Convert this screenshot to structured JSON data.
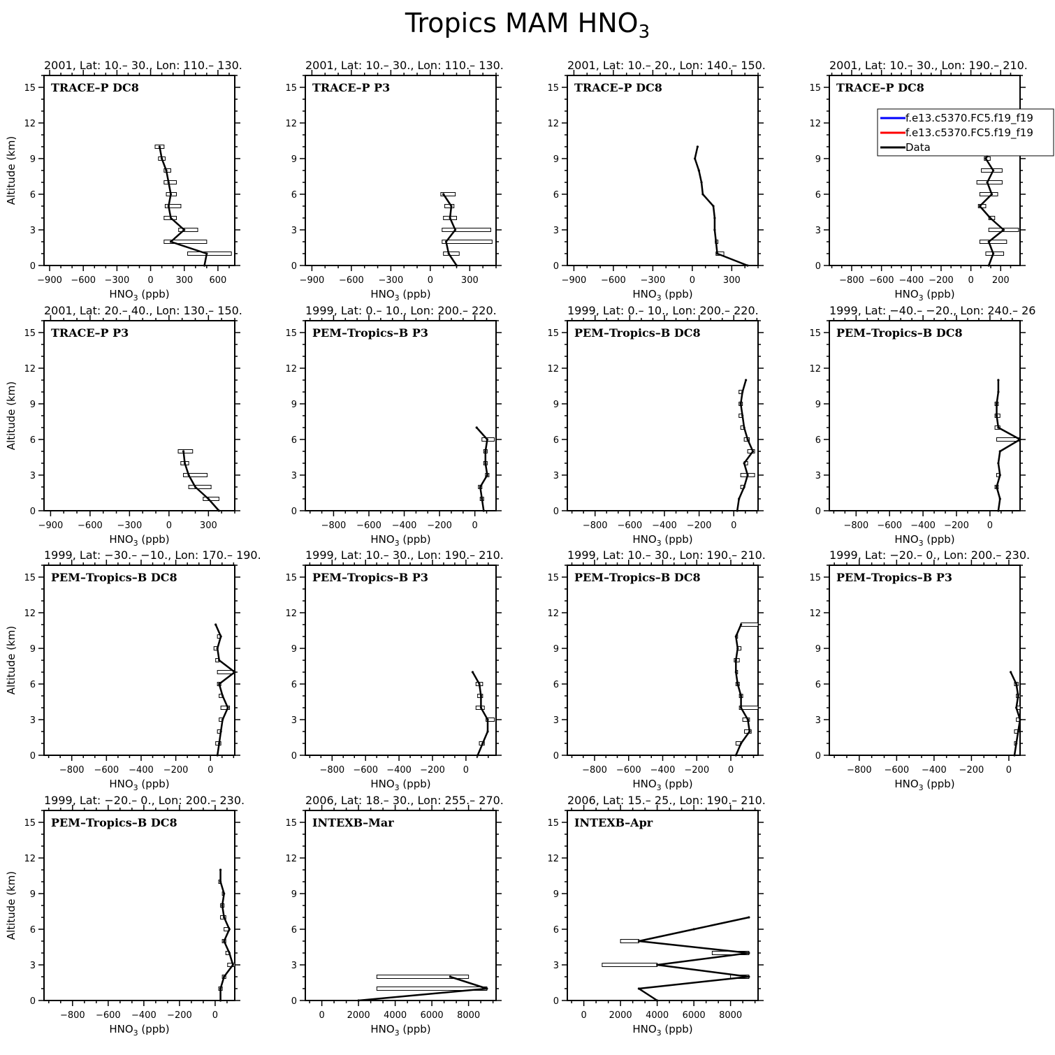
{
  "figure": {
    "title_main": "Tropics MAM HNO",
    "title_sub": "3"
  },
  "axis_labels": {
    "xlabel_main": "HNO",
    "xlabel_sub": "3",
    "xlabel_unit": " (ppb)",
    "ylabel": "Altitude (km)"
  },
  "legend": {
    "entries": [
      {
        "label": "f.e13.c5370.FC5.f19_f19",
        "color": "#0000ff"
      },
      {
        "label": "f.e13.c5370.FC5.f19_f19",
        "color": "#ff0000"
      },
      {
        "label": "Data",
        "color": "#000000"
      }
    ]
  },
  "chart_data": [
    {
      "type": "line",
      "title": "2001, Lat: 10.– 30., Lon: 110.– 130.",
      "campaign": "TRACE–P DC8",
      "xlim": [
        -950,
        750
      ],
      "xticks": [
        -900,
        -600,
        -300,
        0,
        300,
        600
      ],
      "ylim": [
        0,
        16
      ],
      "yticks": [
        0,
        3,
        6,
        9,
        12,
        15
      ],
      "series": [
        {
          "x": [
            480,
            500,
            180,
            300,
            180,
            160,
            180,
            160,
            140,
            100,
            80
          ],
          "y": [
            0,
            1,
            2,
            3,
            4,
            5,
            6,
            7,
            8,
            9,
            10
          ],
          "xmin": [
            null,
            330,
            120,
            250,
            120,
            130,
            140,
            120,
            120,
            70,
            40
          ],
          "xmax": [
            null,
            720,
            500,
            420,
            230,
            270,
            230,
            230,
            180,
            130,
            120
          ]
        }
      ]
    },
    {
      "type": "line",
      "title": "2001, Lat: 10.– 30., Lon: 110.– 130.",
      "campaign": "TRACE–P P3",
      "xlim": [
        -950,
        500
      ],
      "xticks": [
        -900,
        -600,
        -300,
        0,
        300
      ],
      "ylim": [
        0,
        16
      ],
      "yticks": [
        0,
        3,
        6,
        9,
        12,
        15
      ],
      "series": [
        {
          "x": [
            200,
            140,
            120,
            190,
            150,
            160,
            100
          ],
          "y": [
            0,
            1,
            2,
            3,
            4,
            5,
            6
          ],
          "xmin": [
            null,
            100,
            90,
            90,
            100,
            110,
            80
          ],
          "xmax": [
            null,
            220,
            470,
            460,
            200,
            180,
            190
          ]
        }
      ]
    },
    {
      "type": "line",
      "title": "2001, Lat: 10.– 20., Lon: 140.– 150.",
      "campaign": "TRACE–P DC8",
      "xlim": [
        -950,
        500
      ],
      "xticks": [
        -900,
        -600,
        -300,
        0,
        300
      ],
      "ylim": [
        0,
        16
      ],
      "yticks": [
        0,
        3,
        6,
        9,
        12,
        15
      ],
      "series": [
        {
          "x": [
            420,
            190,
            180,
            170,
            170,
            160,
            80,
            70,
            50,
            20,
            40
          ],
          "y": [
            0,
            1,
            2,
            3,
            4,
            5,
            6,
            7,
            8,
            9,
            10
          ],
          "xmin": [
            null,
            180,
            175,
            null,
            null,
            null,
            null,
            null,
            null,
            null,
            null
          ],
          "xmax": [
            null,
            240,
            195,
            null,
            null,
            null,
            null,
            null,
            null,
            null,
            null
          ]
        }
      ]
    },
    {
      "type": "line",
      "title": "2001, Lat: 10.– 30., Lon: 190.– 210.",
      "campaign": "TRACE–P DC8",
      "xlim": [
        -950,
        330
      ],
      "xticks": [
        -800,
        -600,
        -400,
        -200,
        0,
        200
      ],
      "ylim": [
        0,
        16
      ],
      "yticks": [
        0,
        3,
        6,
        9,
        12,
        15
      ],
      "series": [
        {
          "x": [
            120,
            150,
            120,
            220,
            130,
            60,
            140,
            110,
            150,
            100,
            150
          ],
          "y": [
            0,
            1,
            2,
            3,
            4,
            5,
            6,
            7,
            8,
            9,
            10
          ],
          "xmin": [
            null,
            100,
            60,
            120,
            120,
            50,
            60,
            40,
            70,
            90,
            130
          ],
          "xmax": [
            null,
            220,
            240,
            320,
            160,
            100,
            180,
            210,
            210,
            130,
            190
          ]
        }
      ]
    },
    {
      "type": "line",
      "title": "2001, Lat: 20.– 40., Lon: 130.– 150.",
      "campaign": "TRACE–P P3",
      "xlim": [
        -950,
        500
      ],
      "xticks": [
        -900,
        -600,
        -300,
        0,
        300
      ],
      "ylim": [
        0,
        16
      ],
      "yticks": [
        0,
        3,
        6,
        9,
        12,
        15
      ],
      "series": [
        {
          "x": [
            380,
            300,
            200,
            150,
            120,
            110
          ],
          "y": [
            0,
            1,
            2,
            3,
            4,
            5
          ],
          "xmin": [
            null,
            260,
            150,
            110,
            90,
            70
          ],
          "xmax": [
            null,
            380,
            320,
            290,
            150,
            180
          ]
        }
      ]
    },
    {
      "type": "line",
      "title": "1999, Lat: 0.– 10., Lon: 200.– 220.",
      "campaign": "PEM–Tropics–B P3",
      "xlim": [
        -960,
        120
      ],
      "xticks": [
        -800,
        -600,
        -400,
        -200,
        0
      ],
      "ylim": [
        0,
        16
      ],
      "yticks": [
        0,
        3,
        6,
        9,
        12,
        15
      ],
      "series": [
        {
          "x": [
            50,
            40,
            30,
            70,
            60,
            60,
            70,
            10
          ],
          "y": [
            0,
            1,
            2,
            3,
            4,
            5,
            6,
            7
          ],
          "xmin": [
            null,
            30,
            20,
            60,
            50,
            50,
            40,
            null
          ],
          "xmax": [
            null,
            50,
            40,
            80,
            70,
            70,
            110,
            null
          ]
        }
      ]
    },
    {
      "type": "line",
      "title": "1999, Lat: 0.– 10., Lon: 200.– 220.",
      "campaign": "PEM–Tropics–B DC8",
      "xlim": [
        -960,
        140
      ],
      "xticks": [
        -800,
        -600,
        -400,
        -200,
        0
      ],
      "ylim": [
        0,
        16
      ],
      "yticks": [
        0,
        3,
        6,
        9,
        12,
        15
      ],
      "series": [
        {
          "x": [
            20,
            30,
            60,
            80,
            60,
            110,
            80,
            60,
            50,
            40,
            50,
            70
          ],
          "y": [
            0,
            1,
            2,
            3,
            4,
            5,
            6,
            7,
            8,
            9,
            10,
            11
          ],
          "xmin": [
            null,
            null,
            40,
            40,
            60,
            80,
            60,
            40,
            30,
            30,
            30,
            null
          ],
          "xmax": [
            null,
            null,
            60,
            120,
            80,
            120,
            90,
            60,
            50,
            50,
            50,
            null
          ]
        }
      ]
    },
    {
      "type": "line",
      "title": "1999, Lat: −40.– −20., Lon: 240.– 26",
      "campaign": "PEM–Tropics–B DC8",
      "xlim": [
        -960,
        180
      ],
      "xticks": [
        -800,
        -600,
        -400,
        -200,
        0
      ],
      "ylim": [
        0,
        16
      ],
      "yticks": [
        0,
        3,
        6,
        9,
        12,
        15
      ],
      "series": [
        {
          "x": [
            50,
            60,
            40,
            60,
            50,
            60,
            180,
            50,
            40,
            40,
            50,
            50
          ],
          "y": [
            0,
            1,
            2,
            3,
            4,
            5,
            6,
            7,
            8,
            9,
            10,
            11
          ],
          "xmin": [
            null,
            null,
            30,
            40,
            null,
            null,
            40,
            30,
            30,
            30,
            null,
            null
          ],
          "xmax": [
            null,
            null,
            50,
            60,
            null,
            null,
            180,
            60,
            60,
            50,
            null,
            null
          ]
        }
      ]
    },
    {
      "type": "line",
      "title": "1999, Lat: −30.– −10., Lon: 170.– 190.",
      "campaign": "PEM–Tropics–B DC8",
      "xlim": [
        -960,
        140
      ],
      "xticks": [
        -800,
        -600,
        -400,
        -200,
        0
      ],
      "ylim": [
        0,
        16
      ],
      "yticks": [
        0,
        3,
        6,
        9,
        12,
        15
      ],
      "series": [
        {
          "x": [
            40,
            50,
            60,
            70,
            100,
            70,
            50,
            140,
            50,
            40,
            60,
            30
          ],
          "y": [
            0,
            1,
            2,
            3,
            4,
            5,
            6,
            7,
            8,
            9,
            10,
            11
          ],
          "xmin": [
            null,
            30,
            40,
            50,
            60,
            50,
            40,
            40,
            30,
            20,
            40,
            null
          ],
          "xmax": [
            null,
            60,
            60,
            70,
            110,
            70,
            60,
            140,
            50,
            40,
            60,
            null
          ]
        }
      ]
    },
    {
      "type": "line",
      "title": "1999, Lat: 10.– 30., Lon: 190.– 210.",
      "campaign": "PEM–Tropics–B P3",
      "xlim": [
        -960,
        180
      ],
      "xticks": [
        -800,
        -600,
        -400,
        -200,
        0
      ],
      "ylim": [
        0,
        16
      ],
      "yticks": [
        0,
        3,
        6,
        9,
        12,
        15
      ],
      "series": [
        {
          "x": [
            70,
            100,
            130,
            130,
            90,
            90,
            80,
            40
          ],
          "y": [
            0,
            1,
            2,
            3,
            4,
            5,
            6,
            7
          ],
          "xmin": [
            null,
            80,
            null,
            120,
            60,
            70,
            60,
            null
          ],
          "xmax": [
            null,
            110,
            null,
            170,
            110,
            100,
            100,
            null
          ]
        }
      ]
    },
    {
      "type": "line",
      "title": "1999, Lat: 10.– 30., Lon: 190.– 210.",
      "campaign": "PEM–Tropics–B DC8",
      "xlim": [
        -960,
        160
      ],
      "xticks": [
        -800,
        -600,
        -400,
        -200,
        0
      ],
      "ylim": [
        0,
        16
      ],
      "yticks": [
        0,
        3,
        6,
        9,
        12,
        15
      ],
      "series": [
        {
          "x": [
            30,
            60,
            110,
            100,
            60,
            60,
            40,
            30,
            30,
            40,
            30,
            60
          ],
          "y": [
            0,
            1,
            2,
            3,
            4,
            5,
            6,
            7,
            8,
            9,
            10,
            11
          ],
          "xmin": [
            null,
            30,
            80,
            70,
            50,
            50,
            30,
            30,
            20,
            40,
            30,
            60
          ],
          "xmax": [
            null,
            60,
            120,
            110,
            160,
            70,
            50,
            40,
            50,
            60,
            40,
            160
          ]
        }
      ]
    },
    {
      "type": "line",
      "title": "1999, Lat: −20.– 0., Lon: 200.– 230.",
      "campaign": "PEM–Tropics–B P3",
      "xlim": [
        -960,
        60
      ],
      "xticks": [
        -800,
        -600,
        -400,
        -200,
        0
      ],
      "ylim": [
        0,
        16
      ],
      "yticks": [
        0,
        3,
        6,
        9,
        12,
        15
      ],
      "series": [
        {
          "x": [
            30,
            40,
            50,
            60,
            40,
            50,
            40,
            10
          ],
          "y": [
            0,
            1,
            2,
            3,
            4,
            5,
            6,
            7
          ],
          "xmin": [
            null,
            30,
            30,
            40,
            40,
            40,
            30,
            null
          ],
          "xmax": [
            null,
            40,
            50,
            60,
            60,
            60,
            50,
            null
          ]
        }
      ]
    },
    {
      "type": "line",
      "title": "1999, Lat: −20.– 0., Lon: 200.– 230.",
      "campaign": "PEM–Tropics–B DC8",
      "xlim": [
        -960,
        110
      ],
      "xticks": [
        -800,
        -600,
        -400,
        -200,
        0
      ],
      "ylim": [
        0,
        16
      ],
      "yticks": [
        0,
        3,
        6,
        9,
        12,
        15
      ],
      "series": [
        {
          "x": [
            30,
            30,
            50,
            100,
            80,
            50,
            80,
            50,
            40,
            50,
            30,
            30
          ],
          "y": [
            0,
            1,
            2,
            3,
            4,
            5,
            6,
            7,
            8,
            9,
            10,
            11
          ],
          "xmin": [
            null,
            20,
            40,
            70,
            60,
            40,
            50,
            30,
            30,
            40,
            20,
            null
          ],
          "xmax": [
            null,
            40,
            60,
            110,
            80,
            60,
            80,
            60,
            50,
            50,
            30,
            null
          ]
        }
      ]
    },
    {
      "type": "line",
      "title": "2006, Lat: 18.– 30., Lon: 255.– 270.",
      "campaign": "INTEXB–Mar",
      "xlim": [
        -900,
        9500
      ],
      "xticks": [
        0,
        2000,
        4000,
        6000,
        8000
      ],
      "ylim": [
        0,
        16
      ],
      "yticks": [
        0,
        3,
        6,
        9,
        12,
        15
      ],
      "series": [
        {
          "x": [
            2000,
            9000,
            7000
          ],
          "y": [
            0,
            1,
            2
          ],
          "xmin": [
            null,
            3000,
            3000
          ],
          "xmax": [
            null,
            9000,
            8000
          ]
        }
      ]
    },
    {
      "type": "line",
      "title": "2006, Lat: 15.– 25., Lon: 190.– 210.",
      "campaign": "INTEXB–Apr",
      "xlim": [
        -900,
        9500
      ],
      "xticks": [
        0,
        2000,
        4000,
        6000,
        8000
      ],
      "ylim": [
        0,
        16
      ],
      "yticks": [
        0,
        3,
        6,
        9,
        12,
        15
      ],
      "series": [
        {
          "x": [
            4000,
            3000,
            9000,
            4000,
            9000,
            3000,
            6000,
            9000
          ],
          "y": [
            0,
            1,
            2,
            3,
            4,
            5,
            6,
            7
          ],
          "xmin": [
            null,
            null,
            8000,
            1000,
            7000,
            2000,
            null,
            null
          ],
          "xmax": [
            null,
            null,
            9000,
            4000,
            9000,
            3000,
            null,
            null
          ]
        }
      ]
    }
  ]
}
